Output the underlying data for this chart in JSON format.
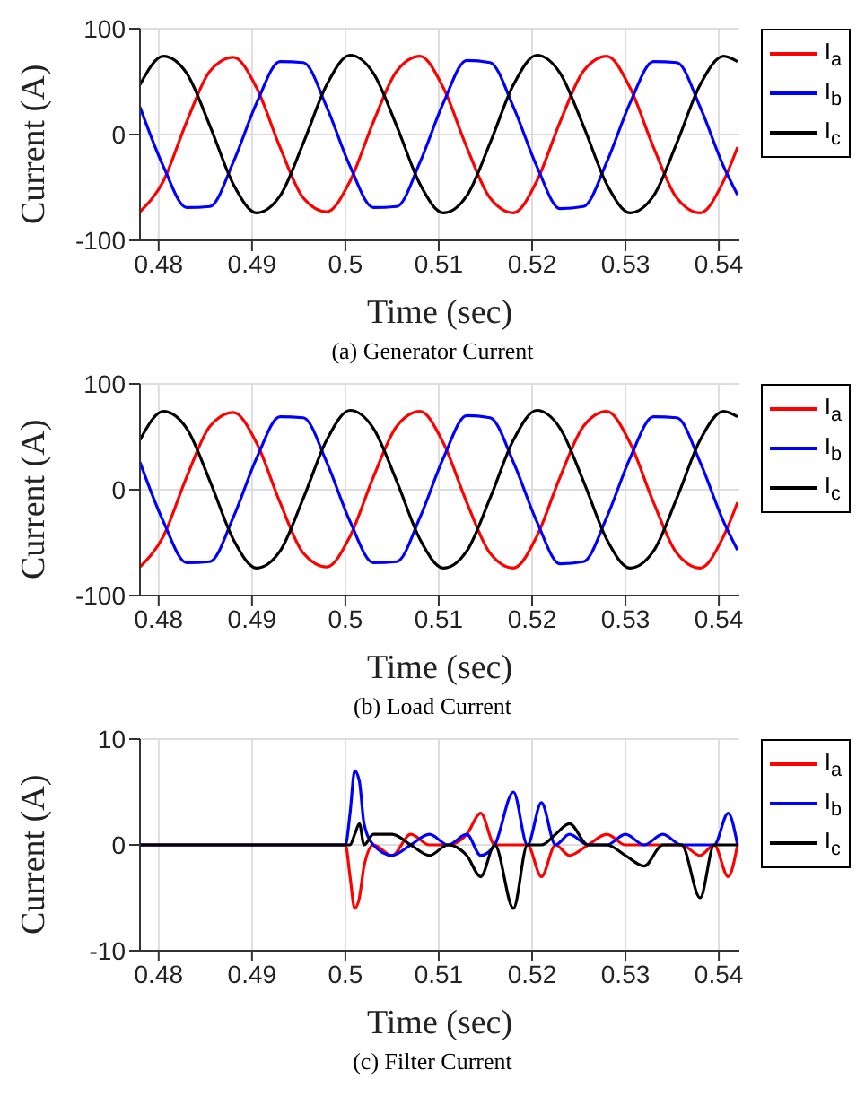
{
  "chart_data": [
    {
      "type": "line",
      "title": "(a) Generator Current",
      "xlabel": "Time (sec)",
      "ylabel": "Current (A)",
      "xlim": [
        0.478,
        0.5422
      ],
      "xticks": [
        0.48,
        0.49,
        0.5,
        0.51,
        0.52,
        0.53,
        0.54
      ],
      "ylim": [
        -100,
        100
      ],
      "yticks": [
        -100,
        0,
        100
      ],
      "grid": true,
      "legend": "top right",
      "x": [
        0.478,
        0.4805,
        0.483,
        0.4855,
        0.488,
        0.4905,
        0.493,
        0.4955,
        0.498,
        0.5005,
        0.503,
        0.5055,
        0.508,
        0.5105,
        0.513,
        0.5155,
        0.518,
        0.5205,
        0.523,
        0.5255,
        0.528,
        0.5305,
        0.533,
        0.5355,
        0.538,
        0.5405,
        0.542
      ],
      "series": [
        {
          "name": "I$_{a}$",
          "color": "#ff0000",
          "values": [
            -73,
            -44,
            12,
            60,
            73,
            44,
            -12,
            -60,
            -73,
            -44,
            12,
            60,
            74,
            44,
            -12,
            -60,
            -74,
            -44,
            12,
            60,
            74,
            44,
            -12,
            -60,
            -74,
            -44,
            -12
          ]
        },
        {
          "name": "I$_{b}$",
          "color": "#0000ff",
          "values": [
            26,
            -30,
            -69,
            -68,
            -26,
            30,
            69,
            68,
            26,
            -30,
            -69,
            -68,
            -26,
            30,
            70,
            68,
            26,
            -30,
            -70,
            -68,
            -26,
            30,
            69,
            68,
            26,
            -30,
            -57
          ]
        },
        {
          "name": "I$_{c}$",
          "color": "#000000",
          "values": [
            47,
            74,
            58,
            8,
            -47,
            -74,
            -58,
            -8,
            47,
            75,
            58,
            8,
            -47,
            -74,
            -58,
            -8,
            47,
            75,
            58,
            8,
            -47,
            -74,
            -58,
            -8,
            47,
            74,
            69
          ]
        }
      ]
    },
    {
      "type": "line",
      "title": "(b) Load Current",
      "xlabel": "Time (sec)",
      "ylabel": "Current (A)",
      "xlim": [
        0.478,
        0.5422
      ],
      "xticks": [
        0.48,
        0.49,
        0.5,
        0.51,
        0.52,
        0.53,
        0.54
      ],
      "ylim": [
        -100,
        100
      ],
      "yticks": [
        -100,
        0,
        100
      ],
      "grid": true,
      "legend": "top right",
      "x": [
        0.478,
        0.4805,
        0.483,
        0.4855,
        0.488,
        0.4905,
        0.493,
        0.4955,
        0.498,
        0.5005,
        0.503,
        0.5055,
        0.508,
        0.5105,
        0.513,
        0.5155,
        0.518,
        0.5205,
        0.523,
        0.5255,
        0.528,
        0.5305,
        0.533,
        0.5355,
        0.538,
        0.5405,
        0.542
      ],
      "series": [
        {
          "name": "I$_{a}$",
          "color": "#ff0000",
          "values": [
            -73,
            -44,
            12,
            60,
            73,
            44,
            -12,
            -60,
            -73,
            -44,
            12,
            60,
            74,
            44,
            -12,
            -60,
            -74,
            -44,
            12,
            60,
            74,
            44,
            -12,
            -60,
            -74,
            -44,
            -12
          ]
        },
        {
          "name": "I$_{b}$",
          "color": "#0000ff",
          "values": [
            26,
            -30,
            -69,
            -68,
            -26,
            30,
            69,
            68,
            26,
            -30,
            -69,
            -68,
            -26,
            30,
            70,
            68,
            26,
            -30,
            -70,
            -68,
            -26,
            30,
            69,
            68,
            26,
            -30,
            -57
          ]
        },
        {
          "name": "I$_{c}$",
          "color": "#000000",
          "values": [
            47,
            74,
            58,
            8,
            -47,
            -74,
            -58,
            -8,
            47,
            75,
            58,
            8,
            -47,
            -74,
            -58,
            -8,
            47,
            75,
            58,
            8,
            -47,
            -74,
            -58,
            -8,
            47,
            74,
            69
          ]
        }
      ]
    },
    {
      "type": "line",
      "title": "(c) Filter Current",
      "xlabel": "Time (sec)",
      "ylabel": "Current (A)",
      "xlim": [
        0.478,
        0.5422
      ],
      "xticks": [
        0.48,
        0.49,
        0.5,
        0.51,
        0.52,
        0.53,
        0.54
      ],
      "ylim": [
        -10,
        10
      ],
      "yticks": [
        -10,
        0,
        10
      ],
      "grid": true,
      "legend": "top right",
      "x": [
        0.478,
        0.5,
        0.5005,
        0.501,
        0.5015,
        0.502,
        0.503,
        0.505,
        0.507,
        0.509,
        0.511,
        0.513,
        0.5145,
        0.516,
        0.518,
        0.5195,
        0.521,
        0.5225,
        0.524,
        0.526,
        0.528,
        0.53,
        0.532,
        0.534,
        0.536,
        0.538,
        0.5395,
        0.541,
        0.542
      ],
      "series": [
        {
          "name": "I$_{a}$",
          "color": "#ff0000",
          "values": [
            0,
            0,
            -3,
            -6,
            -5,
            -2,
            0,
            -1,
            1,
            0,
            0,
            1,
            3,
            0,
            0,
            0,
            -3,
            0,
            -1,
            0,
            1,
            0,
            0,
            0,
            0,
            -1,
            0,
            -3,
            0
          ]
        },
        {
          "name": "I$_{b}$",
          "color": "#0000ff",
          "values": [
            0,
            0,
            3,
            7,
            6,
            2,
            0,
            -1,
            0,
            1,
            0,
            1,
            -1,
            0,
            5,
            0,
            4,
            0,
            1,
            0,
            0,
            1,
            0,
            1,
            0,
            0,
            0,
            3,
            0
          ]
        },
        {
          "name": "I$_{c}$",
          "color": "#000000",
          "values": [
            0,
            0,
            0,
            1,
            2,
            0,
            1,
            1,
            0,
            -1,
            0,
            -1,
            -3,
            0,
            -6,
            0,
            0,
            1,
            2,
            0,
            0,
            -1,
            -2,
            0,
            0,
            -5,
            0,
            0,
            0
          ]
        }
      ]
    }
  ]
}
